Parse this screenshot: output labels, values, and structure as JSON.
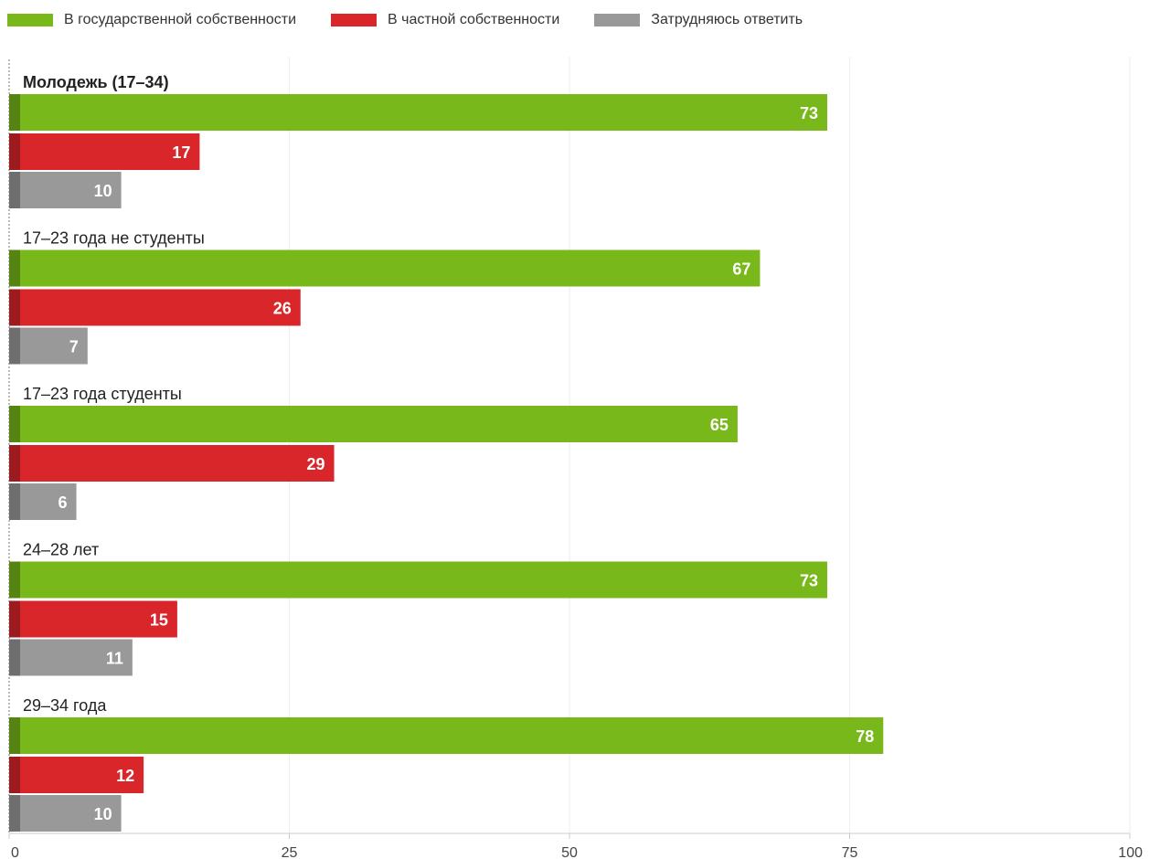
{
  "chart_data": {
    "type": "bar",
    "orientation": "horizontal",
    "categories": [
      "Молодежь (17–34)",
      "17–23 года не студенты",
      "17–23 года студенты",
      "24–28 лет",
      "29–34 года"
    ],
    "series": [
      {
        "name": "В государственной собственности",
        "color": "#78b81a",
        "values": [
          73,
          67,
          65,
          73,
          78
        ]
      },
      {
        "name": "В частной собственности",
        "color": "#d9262b",
        "values": [
          17,
          26,
          29,
          15,
          12
        ]
      },
      {
        "name": "Затрудняюсь ответить",
        "color": "#999999",
        "values": [
          10,
          7,
          6,
          11,
          10
        ]
      }
    ],
    "xlim": [
      0,
      100
    ],
    "xticks": [
      0,
      25,
      50,
      75,
      100
    ],
    "xtick_labels": [
      "0",
      "25",
      "50",
      "75",
      "100"
    ],
    "legend_position": "top-left",
    "grid": true
  }
}
